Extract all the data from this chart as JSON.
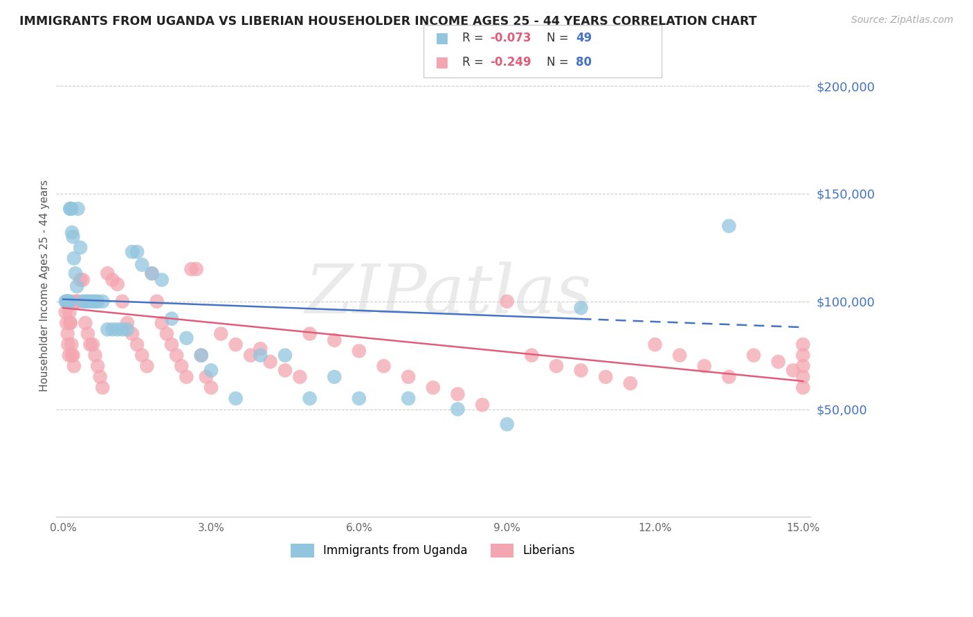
{
  "title": "IMMIGRANTS FROM UGANDA VS LIBERIAN HOUSEHOLDER INCOME AGES 25 - 44 YEARS CORRELATION CHART",
  "source": "Source: ZipAtlas.com",
  "ylabel": "Householder Income Ages 25 - 44 years",
  "ytick_labels": [
    "$200,000",
    "$150,000",
    "$100,000",
    "$50,000"
  ],
  "ytick_vals": [
    200000,
    150000,
    100000,
    50000
  ],
  "ylim": [
    0,
    215000
  ],
  "xlim": [
    -0.15,
    15.15
  ],
  "xtick_vals": [
    0.0,
    3.0,
    6.0,
    9.0,
    12.0,
    15.0
  ],
  "uganda_color": "#92c5de",
  "liberia_color": "#f4a6b0",
  "uganda_line_color": "#4472c4",
  "liberia_line_color": "#e05c7a",
  "watermark": "ZIPatlas",
  "uganda_R": -0.073,
  "uganda_N": 49,
  "liberia_R": -0.249,
  "liberia_N": 80,
  "uganda_points_x": [
    0.05,
    0.07,
    0.09,
    0.1,
    0.12,
    0.13,
    0.14,
    0.15,
    0.17,
    0.18,
    0.2,
    0.22,
    0.25,
    0.28,
    0.3,
    0.35,
    0.4,
    0.45,
    0.5,
    0.55,
    0.6,
    0.65,
    0.7,
    0.8,
    0.9,
    1.0,
    1.1,
    1.2,
    1.3,
    1.4,
    1.5,
    1.6,
    1.8,
    2.0,
    2.2,
    2.5,
    2.8,
    3.0,
    3.5,
    4.0,
    4.5,
    5.0,
    5.5,
    6.0,
    7.0,
    8.0,
    9.0,
    10.5,
    13.5
  ],
  "uganda_points_y": [
    100000,
    100000,
    100000,
    100000,
    100000,
    100000,
    143000,
    143000,
    143000,
    132000,
    130000,
    120000,
    113000,
    107000,
    143000,
    125000,
    100000,
    100000,
    100000,
    100000,
    100000,
    100000,
    100000,
    100000,
    87000,
    87000,
    87000,
    87000,
    87000,
    123000,
    123000,
    117000,
    113000,
    110000,
    92000,
    83000,
    75000,
    68000,
    55000,
    75000,
    75000,
    55000,
    65000,
    55000,
    55000,
    50000,
    43000,
    97000,
    135000
  ],
  "liberia_points_x": [
    0.05,
    0.07,
    0.09,
    0.1,
    0.12,
    0.13,
    0.14,
    0.15,
    0.17,
    0.18,
    0.2,
    0.22,
    0.25,
    0.28,
    0.3,
    0.35,
    0.4,
    0.45,
    0.5,
    0.55,
    0.6,
    0.65,
    0.7,
    0.75,
    0.8,
    0.9,
    1.0,
    1.1,
    1.2,
    1.3,
    1.4,
    1.5,
    1.6,
    1.7,
    1.8,
    1.9,
    2.0,
    2.1,
    2.2,
    2.3,
    2.4,
    2.5,
    2.6,
    2.7,
    2.8,
    2.9,
    3.0,
    3.2,
    3.5,
    3.8,
    4.0,
    4.2,
    4.5,
    4.8,
    5.0,
    5.5,
    6.0,
    6.5,
    7.0,
    7.5,
    8.0,
    8.5,
    9.0,
    9.5,
    10.0,
    10.5,
    11.0,
    11.5,
    12.0,
    12.5,
    13.0,
    13.5,
    14.0,
    14.5,
    14.8,
    15.0,
    15.0,
    15.0,
    15.0,
    15.0
  ],
  "liberia_points_y": [
    95000,
    90000,
    85000,
    80000,
    75000,
    95000,
    90000,
    90000,
    80000,
    75000,
    75000,
    70000,
    100000,
    100000,
    100000,
    110000,
    110000,
    90000,
    85000,
    80000,
    80000,
    75000,
    70000,
    65000,
    60000,
    113000,
    110000,
    108000,
    100000,
    90000,
    85000,
    80000,
    75000,
    70000,
    113000,
    100000,
    90000,
    85000,
    80000,
    75000,
    70000,
    65000,
    115000,
    115000,
    75000,
    65000,
    60000,
    85000,
    80000,
    75000,
    78000,
    72000,
    68000,
    65000,
    85000,
    82000,
    77000,
    70000,
    65000,
    60000,
    57000,
    52000,
    100000,
    75000,
    70000,
    68000,
    65000,
    62000,
    80000,
    75000,
    70000,
    65000,
    75000,
    72000,
    68000,
    80000,
    75000,
    70000,
    65000,
    60000
  ]
}
